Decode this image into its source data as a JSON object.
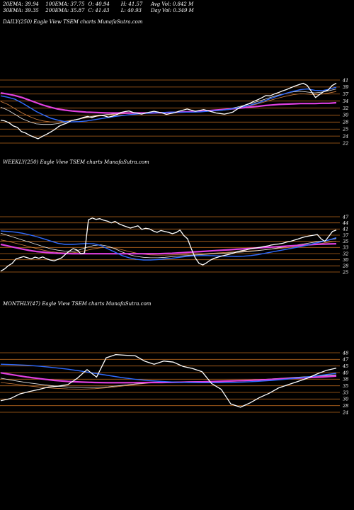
{
  "stats": {
    "ema20": "20EMA: 39.94",
    "ema100": "100EMA: 37.75",
    "open": "O: 40.94",
    "high": "H: 41.57",
    "avg_vol": "Avg Vol: 0.842  M",
    "ema30": "30EMA: 39.35",
    "ema200": "200EMA: 35.87",
    "close": "C: 41.43",
    "low": "L: 40.93",
    "day_vol": "Day Vol: 0.349 M"
  },
  "colors": {
    "background": "#000000",
    "price": "#ffffff",
    "grid": "#b5651d",
    "ema_blue": "#2f6bff",
    "ema_magenta": "#e040e0",
    "ema_light": "#e8e8e8",
    "ema_orange": "#d08040"
  },
  "chart_data": [
    {
      "type": "line",
      "title": "DAILY(250) Eagle  View  TSEM charts MunafaSutra.com",
      "ylim": [
        20,
        43
      ],
      "y_ticks": [
        41,
        39,
        37,
        34,
        32,
        30,
        28,
        25,
        24,
        22
      ],
      "series": [
        {
          "key": "price",
          "values": [
            28.5,
            28.2,
            27.6,
            26.5,
            26.0,
            24.5,
            24.0,
            23.2,
            22.6,
            22.0,
            22.8,
            23.5,
            24.3,
            25.2,
            26.3,
            27.0,
            27.5,
            28.3,
            28.6,
            28.9,
            29.5,
            29.8,
            29.4,
            29.9,
            30.2,
            30.0,
            29.6,
            29.9,
            30.4,
            31.2,
            31.5,
            31.7,
            31.2,
            30.9,
            30.6,
            31.0,
            31.3,
            31.6,
            31.3,
            31.0,
            30.5,
            30.8,
            31.1,
            31.6,
            32.0,
            32.4,
            32.0,
            31.6,
            31.9,
            32.2,
            31.8,
            31.4,
            31.0,
            30.8,
            30.6,
            30.9,
            31.3,
            32.3,
            33.1,
            33.8,
            34.3,
            35.0,
            35.6,
            36.3,
            37.1,
            37.0,
            37.6,
            38.1,
            38.7,
            39.2,
            39.8,
            40.4,
            40.9,
            41.4,
            40.6,
            38.5,
            36.4,
            37.5,
            38.5,
            39.0,
            40.6,
            41.4
          ]
        },
        {
          "key": "ema_blue",
          "values": [
            37.0,
            36.5,
            35.8,
            34.5,
            33.0,
            31.5,
            30.3,
            29.2,
            28.5,
            28.0,
            27.9,
            28.0,
            28.2,
            28.6,
            29.0,
            29.4,
            29.8,
            30.1,
            30.4,
            30.6,
            30.8,
            31.0,
            31.1,
            31.2,
            31.3,
            31.3,
            31.3,
            31.3,
            31.4,
            31.6,
            31.8,
            32.0,
            32.3,
            32.7,
            33.2,
            33.8,
            34.5,
            35.3,
            36.2,
            37.1,
            37.9,
            38.6,
            39.2,
            39.4,
            38.9,
            38.8,
            39.3,
            40.0
          ]
        },
        {
          "key": "ema_magenta",
          "values": [
            38.0,
            37.6,
            37.1,
            36.4,
            35.5,
            34.6,
            33.7,
            33.0,
            32.4,
            32.0,
            31.7,
            31.5,
            31.3,
            31.2,
            31.1,
            31.0,
            31.0,
            31.0,
            31.0,
            31.0,
            31.0,
            31.0,
            31.1,
            31.1,
            31.2,
            31.3,
            31.4,
            31.5,
            31.6,
            31.8,
            32.0,
            32.2,
            32.4,
            32.6,
            32.8,
            33.1,
            33.3,
            33.6,
            33.8,
            34.0,
            34.1,
            34.2,
            34.3,
            34.3,
            34.3,
            34.4,
            34.4,
            34.6
          ]
        },
        {
          "key": "ema_light",
          "values": [
            33.0,
            32.0,
            30.5,
            29.0,
            28.0,
            27.2,
            27.0,
            27.0,
            27.3,
            27.8,
            28.4,
            29.0,
            29.5,
            29.9,
            30.2,
            30.5,
            30.7,
            30.8,
            30.9,
            31.0,
            31.0,
            31.0,
            31.1,
            31.2,
            31.3,
            31.3,
            31.4,
            31.4,
            31.5,
            31.6,
            31.8,
            32.1,
            32.5,
            33.0,
            33.6,
            34.3,
            35.0,
            35.8,
            36.6,
            37.3,
            37.9,
            38.4,
            38.6,
            38.3,
            38.0,
            38.3,
            38.8,
            39.4
          ]
        },
        {
          "key": "ema_orange",
          "values": [
            35.0,
            34.0,
            32.5,
            31.0,
            29.8,
            28.8,
            28.2,
            27.9,
            27.9,
            28.1,
            28.5,
            28.9,
            29.3,
            29.7,
            30.0,
            30.3,
            30.5,
            30.7,
            30.8,
            30.9,
            31.0,
            31.1,
            31.1,
            31.2,
            31.3,
            31.3,
            31.4,
            31.4,
            31.5,
            31.6,
            31.7,
            31.9,
            32.2,
            32.6,
            33.1,
            33.6,
            34.2,
            34.9,
            35.6,
            36.3,
            36.9,
            37.4,
            37.7,
            37.6,
            37.4,
            37.6,
            38.0,
            38.5
          ]
        }
      ]
    },
    {
      "type": "line",
      "title": "WEEKLY(250) Eagle  View  TSEM charts MunafaSutra.com",
      "ylim": [
        22,
        48
      ],
      "y_ticks": [
        47,
        44,
        41,
        37,
        35,
        33,
        32,
        30,
        28,
        25
      ],
      "series": [
        {
          "key": "price",
          "values": [
            23.0,
            24.0,
            25.5,
            26.5,
            28.5,
            29.0,
            29.5,
            29.0,
            28.5,
            29.3,
            28.8,
            29.4,
            28.6,
            28.0,
            27.6,
            28.3,
            29.0,
            30.6,
            32.0,
            33.1,
            32.5,
            30.8,
            31.2,
            46.0,
            46.8,
            46.2,
            46.5,
            45.8,
            45.4,
            44.6,
            45.3,
            44.2,
            43.5,
            42.9,
            42.3,
            42.8,
            43.3,
            41.7,
            42.2,
            41.9,
            41.0,
            40.4,
            41.2,
            40.8,
            40.4,
            39.8,
            40.3,
            41.4,
            39.0,
            37.5,
            33.0,
            29.0,
            26.5,
            25.8,
            26.8,
            28.0,
            28.8,
            29.3,
            29.8,
            30.2,
            30.6,
            31.1,
            31.7,
            32.1,
            32.4,
            32.8,
            33.2,
            33.4,
            33.7,
            34.0,
            34.3,
            34.7,
            35.0,
            35.2,
            35.5,
            36.0,
            36.4,
            36.9,
            37.4,
            38.0,
            38.5,
            38.8,
            39.1,
            39.4,
            37.5,
            36.3,
            38.5,
            40.8,
            41.4
          ]
        },
        {
          "key": "ema_blue",
          "values": [
            41.0,
            40.8,
            40.5,
            40.0,
            39.3,
            38.5,
            37.5,
            36.5,
            35.5,
            35.0,
            35.0,
            35.2,
            35.4,
            35.3,
            34.5,
            33.0,
            31.5,
            30.0,
            29.0,
            28.3,
            28.0,
            28.0,
            28.2,
            28.5,
            28.8,
            29.2,
            29.6,
            29.9,
            30.0,
            30.0,
            29.9,
            29.8,
            29.7,
            29.6,
            29.7,
            30.0,
            30.4,
            31.0,
            31.6,
            32.2,
            32.8,
            33.4,
            34.0,
            34.7,
            35.5,
            36.2,
            37.0,
            38.0
          ]
        },
        {
          "key": "ema_magenta",
          "values": [
            35.0,
            34.3,
            33.6,
            32.9,
            32.3,
            31.8,
            31.5,
            31.2,
            31.0,
            30.9,
            30.8,
            30.8,
            30.8,
            30.8,
            30.8,
            30.8,
            30.8,
            30.8,
            30.8,
            30.8,
            30.8,
            30.8,
            30.8,
            30.9,
            31.0,
            31.2,
            31.4,
            31.6,
            31.8,
            32.0,
            32.2,
            32.4,
            32.6,
            32.8,
            33.0,
            33.2,
            33.4,
            33.6,
            33.8,
            34.0,
            34.2,
            34.4,
            34.6,
            34.8,
            35.0,
            35.1,
            35.2,
            35.3
          ]
        },
        {
          "key": "ema_light",
          "values": [
            40.0,
            39.0,
            38.0,
            37.0,
            36.0,
            35.0,
            34.0,
            33.0,
            32.4,
            32.0,
            31.8,
            32.5,
            33.6,
            34.5,
            34.8,
            34.2,
            33.0,
            31.6,
            30.4,
            29.6,
            29.2,
            29.0,
            29.0,
            29.2,
            29.5,
            29.8,
            30.0,
            30.2,
            30.4,
            30.6,
            30.8,
            31.0,
            31.2,
            31.4,
            31.6,
            31.9,
            32.2,
            32.6,
            33.0,
            33.5,
            34.0,
            34.5,
            35.0,
            35.5,
            36.0,
            36.5,
            37.0,
            37.6
          ]
        },
        {
          "key": "ema_orange",
          "values": [
            37.0,
            36.4,
            35.6,
            34.8,
            34.0,
            33.2,
            32.4,
            31.8,
            31.4,
            31.2,
            31.2,
            31.6,
            32.3,
            33.0,
            33.5,
            33.6,
            33.3,
            32.6,
            31.8,
            31.1,
            30.6,
            30.3,
            30.2,
            30.2,
            30.3,
            30.4,
            30.5,
            30.6,
            30.7,
            30.9,
            31.1,
            31.3,
            31.5,
            31.7,
            31.9,
            32.1,
            32.3,
            32.6,
            32.9,
            33.2,
            33.5,
            33.9,
            34.3,
            34.7,
            35.1,
            35.5,
            36.0,
            36.5
          ]
        }
      ]
    },
    {
      "type": "line",
      "title": "MONTHLY(47) Eagle  View  TSEM charts MunafaSutra.com",
      "ylim": [
        20,
        49
      ],
      "y_ticks": [
        48,
        47,
        45,
        40,
        38,
        35,
        33,
        30,
        28,
        24
      ],
      "series": [
        {
          "key": "price",
          "values": [
            26.0,
            27.0,
            29.2,
            30.3,
            31.3,
            32.4,
            32.8,
            33.5,
            36.5,
            40.5,
            37.0,
            46.0,
            47.5,
            47.2,
            47.0,
            44.5,
            43.0,
            44.5,
            44.0,
            42.0,
            41.0,
            39.5,
            34.0,
            31.3,
            24.5,
            23.0,
            25.0,
            27.5,
            29.5,
            32.0,
            33.5,
            35.0,
            36.5,
            38.5,
            40.2,
            41.2
          ]
        },
        {
          "key": "ema_blue",
          "values": [
            43.0,
            42.8,
            42.5,
            42.0,
            41.4,
            40.7,
            39.8,
            38.8,
            37.8,
            36.8,
            36.0,
            35.4,
            35.0,
            34.7,
            34.5,
            34.4,
            34.4,
            34.5,
            34.7,
            35.0,
            35.4,
            35.9,
            36.5,
            37.2,
            38.0,
            38.8
          ]
        },
        {
          "key": "ema_magenta",
          "values": [
            39.0,
            38.0,
            37.0,
            36.2,
            35.5,
            35.0,
            34.7,
            34.5,
            34.4,
            34.4,
            34.4,
            34.5,
            34.5,
            34.6,
            34.7,
            34.8,
            35.0,
            35.2,
            35.4,
            35.6,
            35.9,
            36.2,
            36.5,
            36.8,
            37.1,
            37.5
          ]
        },
        {
          "key": "ema_light",
          "values": [
            36.5,
            35.4,
            34.4,
            33.6,
            32.9,
            32.4,
            32.2,
            32.2,
            32.5,
            33.1,
            33.8,
            34.3,
            34.6,
            34.8,
            34.9,
            35.0,
            35.1,
            35.3,
            35.5,
            35.8,
            36.1,
            36.5,
            36.9,
            37.3,
            37.7,
            38.1
          ]
        },
        {
          "key": "ema_orange",
          "values": [
            34.5,
            33.8,
            33.0,
            32.3,
            31.8,
            31.5,
            31.4,
            31.6,
            32.1,
            32.8,
            33.6,
            34.2,
            34.6,
            34.8,
            34.8,
            34.8,
            34.9,
            35.0,
            35.2,
            35.5,
            35.8,
            36.2,
            36.6,
            37.0,
            37.4,
            37.8
          ]
        }
      ]
    }
  ]
}
